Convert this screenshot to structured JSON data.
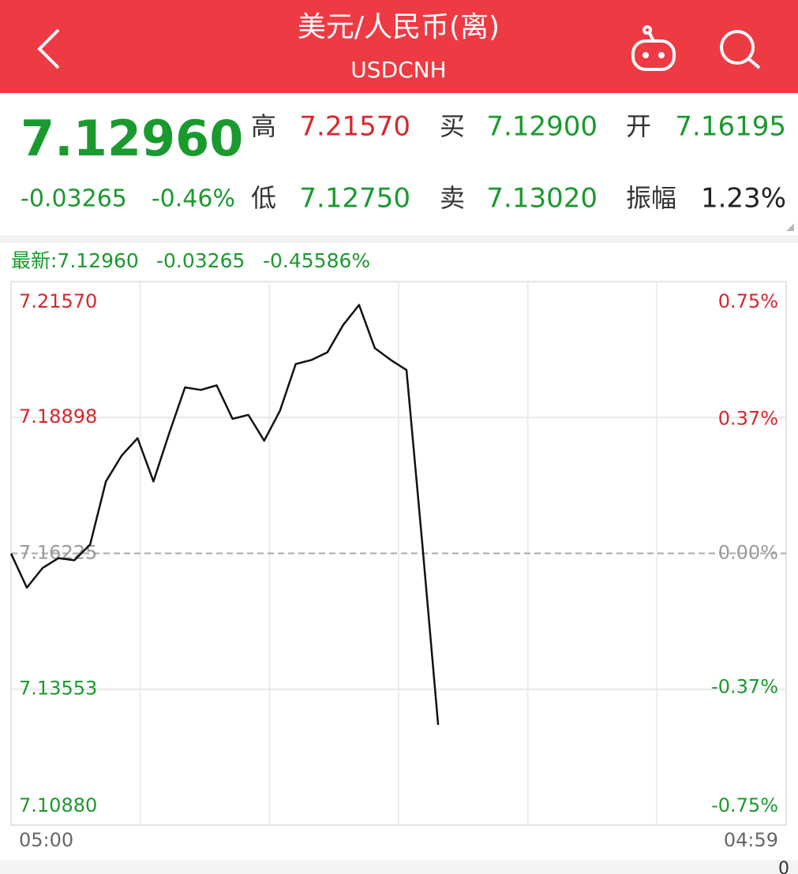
{
  "header": {
    "title": "美元/人民币(离)",
    "subtitle": "USDCNH"
  },
  "quote": {
    "price": "7.12960",
    "change": "-0.03265",
    "change_pct": "-0.46%",
    "color": "#1a9a2e",
    "items": [
      {
        "label": "高",
        "value": "7.21570",
        "color": "#d9262e"
      },
      {
        "label": "买",
        "value": "7.12900",
        "color": "#1a9a2e"
      },
      {
        "label": "开",
        "value": "7.16195",
        "color": "#1a9a2e"
      },
      {
        "label": "低",
        "value": "7.12750",
        "color": "#1a9a2e"
      },
      {
        "label": "卖",
        "value": "7.13020",
        "color": "#1a9a2e"
      },
      {
        "label": "振幅",
        "value": "1.23%",
        "color": "#222222"
      }
    ]
  },
  "latest": {
    "label": "最新:7.12960",
    "change": "-0.03265",
    "change_pct": "-0.45586%",
    "color": "#1a9a2e"
  },
  "chart_data": {
    "type": "line",
    "categories": [
      "05:00",
      null,
      null,
      null,
      null,
      null,
      null,
      null,
      null,
      null,
      null,
      null,
      null,
      null,
      null,
      null,
      null,
      null,
      null,
      null,
      null,
      null,
      null,
      null,
      null,
      null,
      null,
      null,
      null,
      null,
      null,
      null,
      null,
      null,
      null,
      null,
      null,
      null,
      null,
      null,
      null,
      null,
      null,
      null,
      null,
      null,
      null,
      null,
      null,
      "04:59"
    ],
    "series": [
      {
        "name": "USDCNH",
        "color": "#111111",
        "values": [
          7.1622,
          7.1555,
          7.1594,
          7.1613,
          7.1609,
          7.164,
          7.1764,
          7.1815,
          7.1849,
          7.1764,
          7.1859,
          7.1949,
          7.1944,
          7.1953,
          7.1887,
          7.1895,
          7.1844,
          7.1903,
          7.1995,
          7.2003,
          7.2018,
          7.2072,
          7.2111,
          7.2026,
          7.2003,
          7.1983,
          7.164,
          7.1285,
          null,
          null,
          null,
          null,
          null,
          null,
          null,
          null,
          null,
          null,
          null,
          null,
          null,
          null,
          null,
          null,
          null,
          null,
          null,
          null,
          null,
          null
        ]
      }
    ],
    "ylim": [
      7.1088,
      7.2157
    ],
    "yticks": [
      {
        "value": 7.1088,
        "label": "7.10880"
      },
      {
        "value": 7.13553,
        "label": "7.13553"
      },
      {
        "value": 7.16225,
        "label": "7.16225"
      },
      {
        "value": 7.18898,
        "label": "7.18898"
      },
      {
        "value": 7.2157,
        "label": "7.21570"
      }
    ],
    "y2lim": [
      -0.75,
      0.75
    ],
    "y2ticks": [
      {
        "value": -0.75,
        "label": "-0.75%"
      },
      {
        "value": -0.37,
        "label": "-0.37%"
      },
      {
        "value": 0,
        "label": "0.00%"
      },
      {
        "value": 0.37,
        "label": "0.37%"
      },
      {
        "value": 0.75,
        "label": "0.75%"
      }
    ],
    "up_color": "#d9262e",
    "down_color": "#1a9a2e",
    "grid": true
  },
  "footer": {
    "text": "0"
  }
}
